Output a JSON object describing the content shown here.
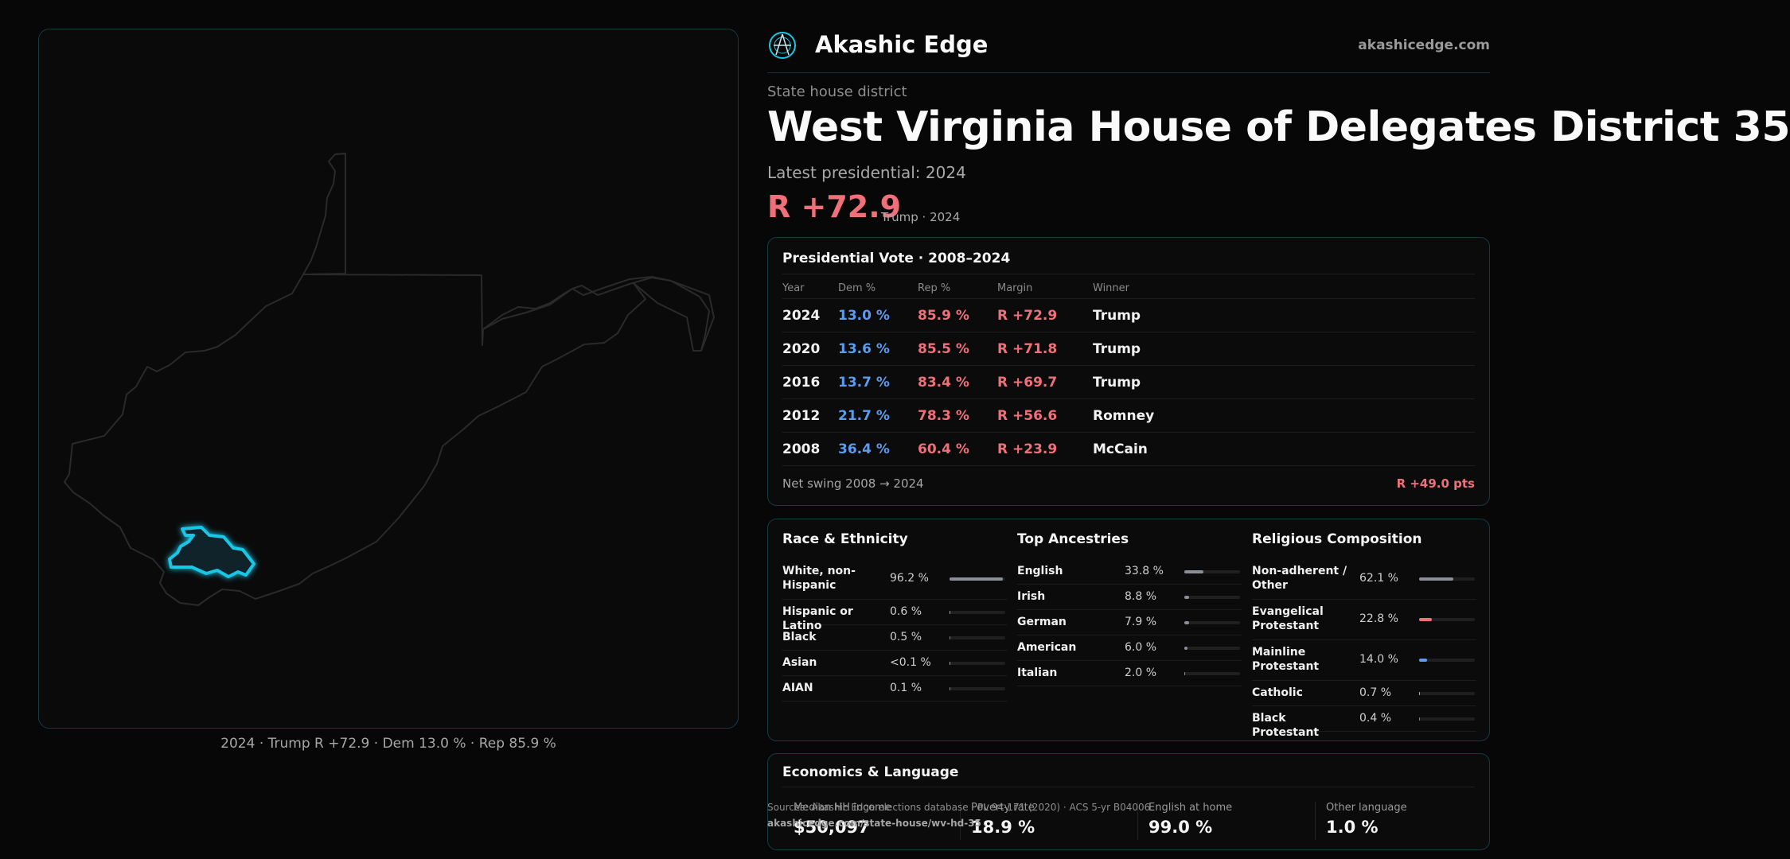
{
  "map": {
    "caption": "2024 · Trump R +72.9 · Dem 13.0 % · Rep 85.9 %"
  },
  "header": {
    "brand": "Akashic Edge",
    "site": "akashicedge.com",
    "logo_icon": "compass-logo-icon"
  },
  "district": {
    "kind": "State house district",
    "title": "West Virginia House of Delegates District 35",
    "latest_label": "Latest presidential: 2024",
    "margin": "R +72.9",
    "margin_sub": "Trump · 2024"
  },
  "colors": {
    "rep": "#f0707a",
    "dem": "#5a9cf0",
    "accent": "#19c6e6",
    "neutral": "#8a8f98"
  },
  "vote_table": {
    "title": "Presidential Vote · 2008–2024",
    "headers": {
      "year": "Year",
      "dem": "Dem %",
      "rep": "Rep %",
      "margin": "Margin",
      "winner": "Winner"
    },
    "rows": [
      {
        "year": "2024",
        "dem": "13.0 %",
        "rep": "85.9 %",
        "margin": "R +72.9",
        "winner": "Trump"
      },
      {
        "year": "2020",
        "dem": "13.6 %",
        "rep": "85.5 %",
        "margin": "R +71.8",
        "winner": "Trump"
      },
      {
        "year": "2016",
        "dem": "13.7 %",
        "rep": "83.4 %",
        "margin": "R +69.7",
        "winner": "Trump"
      },
      {
        "year": "2012",
        "dem": "21.7 %",
        "rep": "78.3 %",
        "margin": "R +56.6",
        "winner": "Romney"
      },
      {
        "year": "2008",
        "dem": "36.4 %",
        "rep": "60.4 %",
        "margin": "R +23.9",
        "winner": "McCain"
      }
    ],
    "swing_label": "Net swing 2008 → 2024",
    "swing_value": "R +49.0 pts"
  },
  "race": {
    "title": "Race & Ethnicity",
    "items": [
      {
        "label": "White, non-Hispanic",
        "value": "96.2 %",
        "pct": 96.2,
        "color": "#8a8f98"
      },
      {
        "label": "Hispanic or Latino",
        "value": "0.6 %",
        "pct": 0.6,
        "color": "#d9a441"
      },
      {
        "label": "Black",
        "value": "0.5 %",
        "pct": 0.5,
        "color": "#7a6cf0"
      },
      {
        "label": "Asian",
        "value": "<0.1 %",
        "pct": 0.05,
        "color": "#5fcfa0"
      },
      {
        "label": "AIAN",
        "value": "0.1 %",
        "pct": 0.1,
        "color": "#c07a5a"
      }
    ]
  },
  "ancestry": {
    "title": "Top Ancestries",
    "items": [
      {
        "label": "English",
        "value": "33.8 %",
        "pct": 33.8,
        "color": "#8a8f98"
      },
      {
        "label": "Irish",
        "value": "8.8 %",
        "pct": 8.8,
        "color": "#8a8f98"
      },
      {
        "label": "German",
        "value": "7.9 %",
        "pct": 7.9,
        "color": "#8a8f98"
      },
      {
        "label": "American",
        "value": "6.0 %",
        "pct": 6.0,
        "color": "#8a8f98"
      },
      {
        "label": "Italian",
        "value": "2.0 %",
        "pct": 2.0,
        "color": "#8a8f98"
      }
    ]
  },
  "religion": {
    "title": "Religious Composition",
    "items": [
      {
        "label": "Non-adherent / Other",
        "value": "62.1 %",
        "pct": 62.1,
        "color": "#8a8f98"
      },
      {
        "label": "Evangelical Protestant",
        "value": "22.8 %",
        "pct": 22.8,
        "color": "#f0707a"
      },
      {
        "label": "Mainline Protestant",
        "value": "14.0 %",
        "pct": 14.0,
        "color": "#5a9cf0"
      },
      {
        "label": "Catholic",
        "value": "0.7 %",
        "pct": 0.7,
        "color": "#d9a441"
      },
      {
        "label": "Black Protestant",
        "value": "0.4 %",
        "pct": 0.4,
        "color": "#7a6cf0"
      }
    ]
  },
  "economics": {
    "title": "Economics & Language",
    "items": [
      {
        "label": "Median HH income",
        "value": "$50,097"
      },
      {
        "label": "Poverty rate",
        "value": "18.9 %"
      },
      {
        "label": "English at home",
        "value": "99.0 %"
      },
      {
        "label": "Other language",
        "value": "1.0 %"
      }
    ]
  },
  "footer": {
    "sources": "Sources: Akashic Edge elections database · PL 94-171 (2020) · ACS 5-yr B04006",
    "url": "akashicedge.com/state-house/wv-hd-35"
  }
}
